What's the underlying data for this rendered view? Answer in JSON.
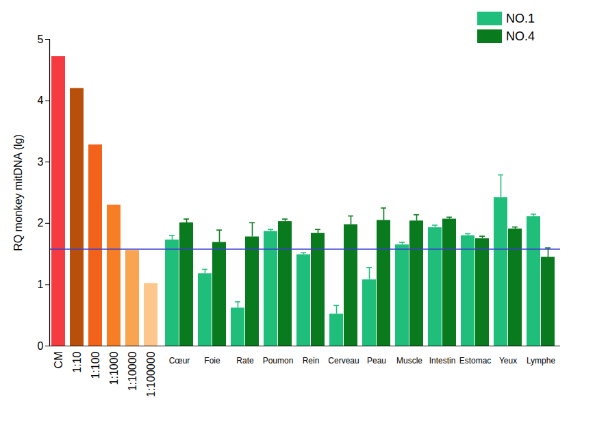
{
  "chart_data": {
    "type": "bar",
    "y_label": "RQ monkey mitDNA (lg)",
    "ylim": [
      0,
      5
    ],
    "yticks": [
      0,
      1,
      2,
      3,
      4,
      5
    ],
    "standards": {
      "categories": [
        "CM",
        "1:10",
        "1:100",
        "1:1000",
        "1:10000",
        "1:100000"
      ],
      "values": [
        4.72,
        4.2,
        3.28,
        2.3,
        1.56,
        1.02
      ],
      "colors": [
        "#f53b40",
        "#b8500c",
        "#f2621a",
        "#f77e24",
        "#f9a451",
        "#fcc68c"
      ]
    },
    "categories": [
      "Cœur",
      "Foie",
      "Rate",
      "Poumon",
      "Rein",
      "Cerveau",
      "Peau",
      "Muscle",
      "Intestin",
      "Estomac",
      "Yeux",
      "Lymphe"
    ],
    "series": [
      {
        "name": "NO.1",
        "color": "#1fbf7b",
        "values": [
          1.73,
          1.18,
          0.62,
          1.87,
          1.49,
          0.52,
          1.08,
          1.65,
          1.93,
          1.8,
          2.42,
          2.11
        ],
        "errors": [
          0.07,
          0.07,
          0.1,
          0.03,
          0.03,
          0.14,
          0.2,
          0.04,
          0.04,
          0.03,
          0.37,
          0.04
        ]
      },
      {
        "name": "NO.4",
        "color": "#0a7a1f",
        "values": [
          2.01,
          1.69,
          1.78,
          2.03,
          1.84,
          1.98,
          2.05,
          2.04,
          2.07,
          1.75,
          1.91,
          1.45
        ],
        "errors": [
          0.06,
          0.2,
          0.23,
          0.04,
          0.06,
          0.14,
          0.2,
          0.1,
          0.03,
          0.04,
          0.03,
          0.15
        ]
      }
    ],
    "reference_line": 1.58,
    "legend": "top-right"
  }
}
